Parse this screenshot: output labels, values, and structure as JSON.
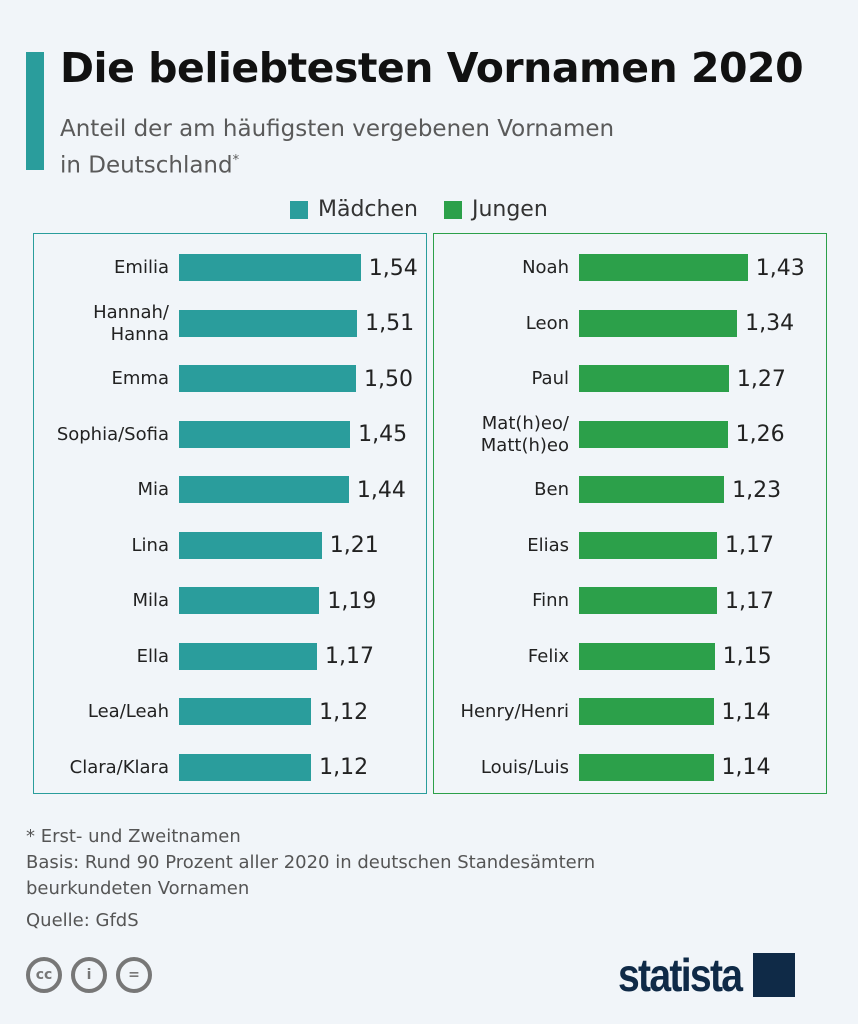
{
  "title": "Die beliebtesten Vornamen 2020",
  "subtitle_line1": "Anteil der am häufigsten vergebenen Vornamen",
  "subtitle_line2": "in Deutschland",
  "subtitle_mark": "*",
  "colors": {
    "accent": "#2a9d9c",
    "girls": "#2a9d9c",
    "boys": "#2ca04a",
    "background": "#f1f5f9",
    "logo": "#0f2a47"
  },
  "chart_data": [
    {
      "type": "bar",
      "orientation": "horizontal",
      "series": [
        {
          "name": "Mädchen"
        }
      ],
      "categories": [
        "Emilia",
        "Hannah/\nHanna",
        "Emma",
        "Sophia/Sofia",
        "Mia",
        "Lina",
        "Mila",
        "Ella",
        "Lea/Leah",
        "Clara/Klara"
      ],
      "values": [
        1.54,
        1.51,
        1.5,
        1.45,
        1.44,
        1.21,
        1.19,
        1.17,
        1.12,
        1.12
      ],
      "labels": [
        "1,54",
        "1,51",
        "1,50",
        "1,45",
        "1,44",
        "1,21",
        "1,19",
        "1,17",
        "1,12",
        "1,12"
      ]
    },
    {
      "type": "bar",
      "orientation": "horizontal",
      "series": [
        {
          "name": "Jungen"
        }
      ],
      "categories": [
        "Noah",
        "Leon",
        "Paul",
        "Mat(h)eo/\nMatt(h)eo",
        "Ben",
        "Elias",
        "Finn",
        "Felix",
        "Henry/Henri",
        "Louis/Luis"
      ],
      "values": [
        1.43,
        1.34,
        1.27,
        1.26,
        1.23,
        1.17,
        1.17,
        1.15,
        1.14,
        1.14
      ],
      "labels": [
        "1,43",
        "1,34",
        "1,27",
        "1,26",
        "1,23",
        "1,17",
        "1,17",
        "1,15",
        "1,14",
        "1,14"
      ]
    }
  ],
  "footer": {
    "note": "* Erst- und Zweitnamen",
    "basis_line1": "Basis: Rund 90 Prozent aller 2020 in deutschen Standesämtern",
    "basis_line2": "beurkundeten Vornamen",
    "source": "Quelle: GfdS"
  },
  "license_icons": [
    "cc-icon",
    "by-icon",
    "nd-icon"
  ],
  "logo": "statista"
}
